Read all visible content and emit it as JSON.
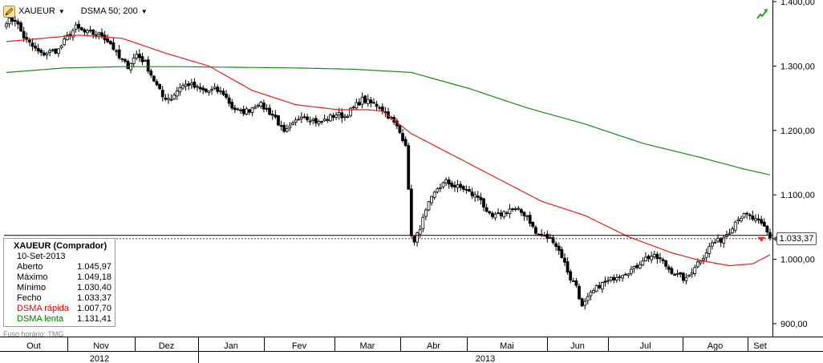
{
  "toolbar": {
    "symbol": "XAUEUR",
    "indicator": "DSMA 50; 200",
    "dropdown_glyph": "▼"
  },
  "icons": {
    "pencil": "pencil-icon",
    "trend": "trend-up-arrow-icon"
  },
  "info": {
    "title": "XAUEUR (Comprador)",
    "date": "10-Set-2013",
    "rows": [
      {
        "label": "Aberto",
        "value": "1.045,97",
        "color": "default"
      },
      {
        "label": "Máximo",
        "value": "1.049,18",
        "color": "default"
      },
      {
        "label": "Mínimo",
        "value": "1.030,40",
        "color": "default"
      },
      {
        "label": "Fecho",
        "value": "1.033,37",
        "color": "default"
      },
      {
        "label": "DSMA rápida",
        "value": "1.007,70",
        "color": "#e00000"
      },
      {
        "label": "DSMA lenta",
        "value": "1.131,41",
        "color": "#007a00"
      }
    ]
  },
  "timezone_note": "Fuso horário: TMG",
  "current_price_label": "1.033,37",
  "chart_data": {
    "type": "candlestick",
    "symbol": "XAUEUR",
    "ylim": [
      880,
      1400
    ],
    "y_ticks": [
      {
        "value": 900,
        "label": "900,00"
      },
      {
        "value": 1000,
        "label": "1.000,00"
      },
      {
        "value": 1100,
        "label": "1.100,00"
      },
      {
        "value": 1200,
        "label": "1.200,00"
      },
      {
        "value": 1300,
        "label": "1.300,00"
      },
      {
        "value": 1400,
        "label": "1.400,00"
      }
    ],
    "x_months": [
      "Out",
      "Nov",
      "Dez",
      "Jan",
      "Fev",
      "Mar",
      "Abr",
      "Mai",
      "Jun",
      "Jul",
      "Ago",
      "Set"
    ],
    "x_years": [
      {
        "label": "2012",
        "from_month": 0,
        "to_month": 2
      },
      {
        "label": "2013",
        "from_month": 3,
        "to_month": 11
      }
    ],
    "last_close": 1033.37,
    "grid": false,
    "colors": {
      "up": "#ffffff",
      "down": "#000000",
      "fast_ma": "#e02020",
      "slow_ma": "#1a8a1a"
    },
    "price_anchors": [
      [
        0,
        1370
      ],
      [
        3,
        1372
      ],
      [
        6,
        1345
      ],
      [
        9,
        1330
      ],
      [
        12,
        1318
      ],
      [
        15,
        1322
      ],
      [
        18,
        1325
      ],
      [
        21,
        1345
      ],
      [
        24,
        1360
      ],
      [
        27,
        1352
      ],
      [
        30,
        1350
      ],
      [
        33,
        1348
      ],
      [
        36,
        1335
      ],
      [
        39,
        1312
      ],
      [
        42,
        1300
      ],
      [
        45,
        1318
      ],
      [
        48,
        1305
      ],
      [
        51,
        1278
      ],
      [
        54,
        1252
      ],
      [
        57,
        1250
      ],
      [
        60,
        1268
      ],
      [
        63,
        1272
      ],
      [
        66,
        1265
      ],
      [
        69,
        1260
      ],
      [
        72,
        1263
      ],
      [
        75,
        1258
      ],
      [
        78,
        1236
      ],
      [
        81,
        1228
      ],
      [
        84,
        1232
      ],
      [
        87,
        1243
      ],
      [
        90,
        1232
      ],
      [
        93,
        1220
      ],
      [
        96,
        1195
      ],
      [
        99,
        1208
      ],
      [
        102,
        1225
      ],
      [
        105,
        1218
      ],
      [
        108,
        1212
      ],
      [
        111,
        1218
      ],
      [
        114,
        1225
      ],
      [
        117,
        1222
      ],
      [
        120,
        1235
      ],
      [
        123,
        1248
      ],
      [
        126,
        1242
      ],
      [
        129,
        1238
      ],
      [
        132,
        1223
      ],
      [
        135,
        1205
      ],
      [
        138,
        1180
      ],
      [
        139,
        1105
      ],
      [
        140,
        1040
      ],
      [
        141,
        1025
      ],
      [
        143,
        1050
      ],
      [
        146,
        1085
      ],
      [
        149,
        1110
      ],
      [
        152,
        1120
      ],
      [
        155,
        1113
      ],
      [
        158,
        1110
      ],
      [
        161,
        1100
      ],
      [
        164,
        1095
      ],
      [
        166,
        1070
      ],
      [
        168,
        1065
      ],
      [
        171,
        1070
      ],
      [
        174,
        1078
      ],
      [
        177,
        1075
      ],
      [
        180,
        1068
      ],
      [
        183,
        1040
      ],
      [
        186,
        1035
      ],
      [
        189,
        1030
      ],
      [
        192,
        1005
      ],
      [
        195,
        970
      ],
      [
        197,
        960
      ],
      [
        199,
        925
      ],
      [
        202,
        945
      ],
      [
        205,
        960
      ],
      [
        208,
        965
      ],
      [
        211,
        975
      ],
      [
        214,
        980
      ],
      [
        217,
        985
      ],
      [
        220,
        1000
      ],
      [
        223,
        1005
      ],
      [
        226,
        1000
      ],
      [
        229,
        985
      ],
      [
        232,
        975
      ],
      [
        235,
        968
      ],
      [
        238,
        990
      ],
      [
        241,
        1005
      ],
      [
        244,
        1025
      ],
      [
        247,
        1030
      ],
      [
        250,
        1045
      ],
      [
        253,
        1065
      ],
      [
        256,
        1068
      ],
      [
        259,
        1060
      ],
      [
        262,
        1050
      ],
      [
        264,
        1033
      ]
    ],
    "fast_ma_anchors": [
      [
        0,
        1338
      ],
      [
        25,
        1348
      ],
      [
        40,
        1343
      ],
      [
        55,
        1320
      ],
      [
        70,
        1300
      ],
      [
        85,
        1262
      ],
      [
        100,
        1240
      ],
      [
        115,
        1232
      ],
      [
        125,
        1232
      ],
      [
        130,
        1230
      ],
      [
        140,
        1195
      ],
      [
        155,
        1160
      ],
      [
        170,
        1125
      ],
      [
        185,
        1090
      ],
      [
        200,
        1068
      ],
      [
        215,
        1035
      ],
      [
        230,
        1010
      ],
      [
        240,
        998
      ],
      [
        250,
        990
      ],
      [
        258,
        993
      ],
      [
        264,
        1007
      ]
    ],
    "slow_ma_anchors": [
      [
        0,
        1290
      ],
      [
        20,
        1297
      ],
      [
        40,
        1299
      ],
      [
        60,
        1299
      ],
      [
        80,
        1298
      ],
      [
        100,
        1297
      ],
      [
        120,
        1295
      ],
      [
        140,
        1290
      ],
      [
        160,
        1265
      ],
      [
        180,
        1235
      ],
      [
        200,
        1210
      ],
      [
        220,
        1180
      ],
      [
        240,
        1158
      ],
      [
        255,
        1140
      ],
      [
        264,
        1131
      ]
    ]
  }
}
